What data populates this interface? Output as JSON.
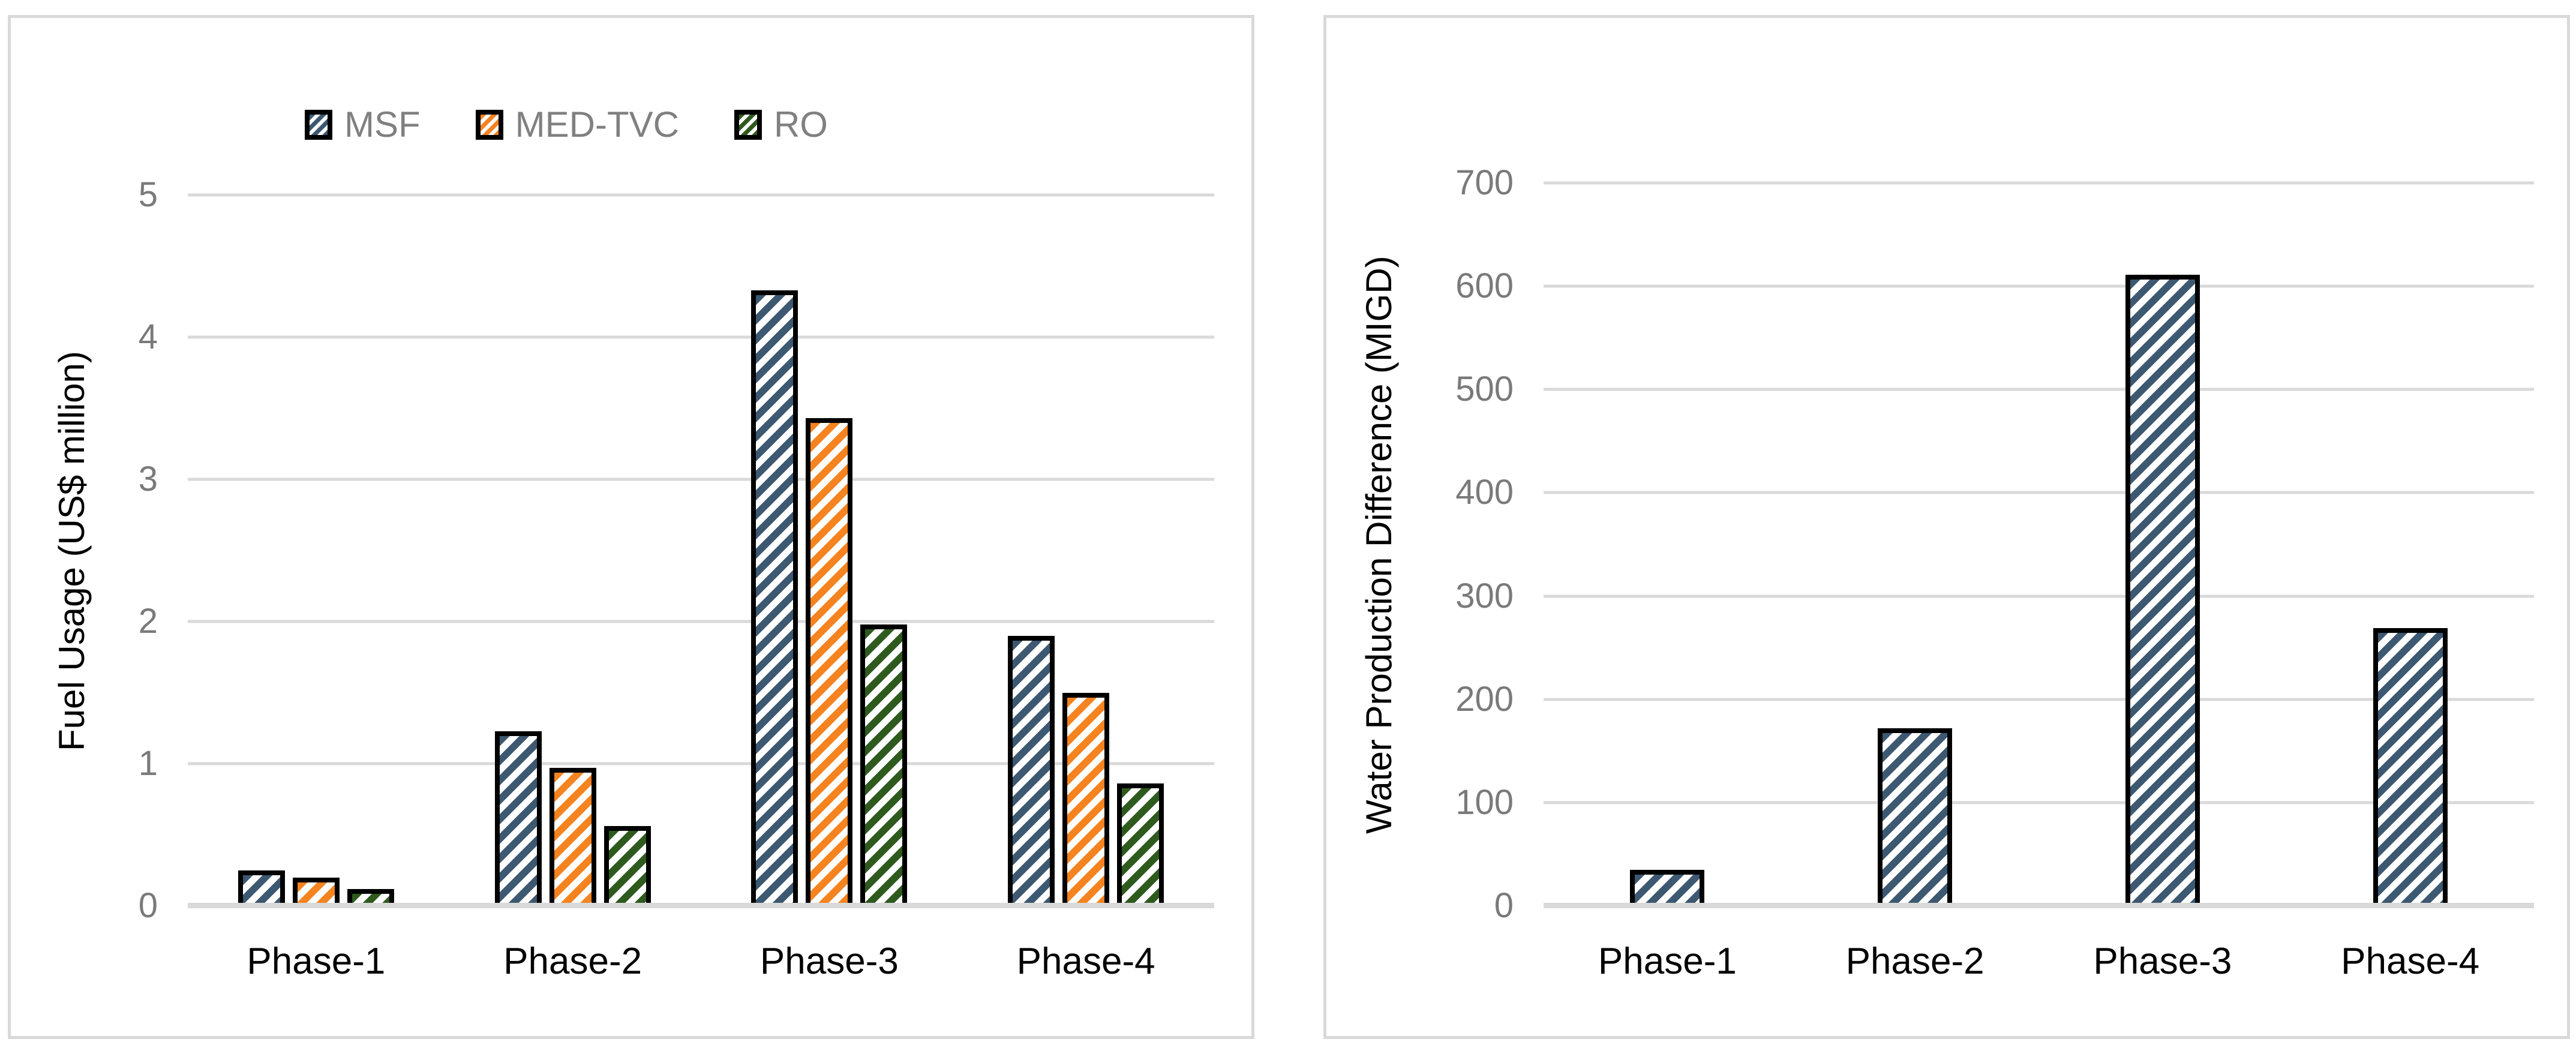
{
  "colors": {
    "msf": "#3D5871",
    "med_tvc": "#F5831F",
    "ro": "#2E5A1E",
    "grid": "#D9D9D9",
    "panel_border": "#D9D9D9",
    "axis_text": "#7A7A7A",
    "legend_text": "#808080",
    "bar_border": "#000000",
    "category_text": "#000000"
  },
  "chart_data": [
    {
      "type": "bar",
      "title": "",
      "xlabel": "",
      "ylabel": "Fuel Usage (US$ million)",
      "categories": [
        "Phase-1",
        "Phase-2",
        "Phase-3",
        "Phase-4"
      ],
      "series": [
        {
          "name": "MSF",
          "color_key": "msf",
          "values": [
            0.25,
            1.23,
            4.33,
            1.9
          ]
        },
        {
          "name": "MED-TVC",
          "color_key": "med_tvc",
          "values": [
            0.2,
            0.97,
            3.43,
            1.5
          ]
        },
        {
          "name": "RO",
          "color_key": "ro",
          "values": [
            0.12,
            0.56,
            1.98,
            0.86
          ]
        }
      ],
      "ylim": [
        0,
        5
      ],
      "yticks": [
        0,
        1,
        2,
        3,
        4,
        5
      ],
      "grid": true,
      "legend_position": "top"
    },
    {
      "type": "bar",
      "title": "",
      "xlabel": "",
      "ylabel": "Water Production Difference (MIGD)",
      "categories": [
        "Phase-1",
        "Phase-2",
        "Phase-3",
        "Phase-4"
      ],
      "series": [
        {
          "name": "MSF",
          "color_key": "msf",
          "values": [
            35,
            172,
            611,
            269
          ]
        }
      ],
      "ylim": [
        0,
        700
      ],
      "yticks": [
        0,
        100,
        200,
        300,
        400,
        500,
        600,
        700
      ],
      "grid": true,
      "legend_position": "none"
    }
  ]
}
